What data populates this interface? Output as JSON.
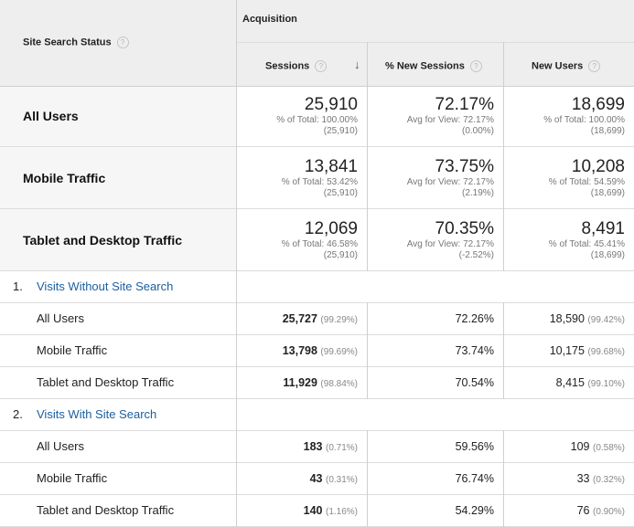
{
  "header": {
    "dimension": "Site Search Status",
    "group": "Acquisition",
    "columns": [
      "Sessions",
      "% New Sessions",
      "New Users"
    ]
  },
  "summary": [
    {
      "label": "All Users",
      "sessions": {
        "value": "25,910",
        "line1": "% of Total: 100.00%",
        "line2": "(25,910)"
      },
      "new_sessions": {
        "value": "72.17%",
        "line1": "Avg for View: 72.17%",
        "line2": "(0.00%)"
      },
      "new_users": {
        "value": "18,699",
        "line1": "% of Total: 100.00%",
        "line2": "(18,699)"
      }
    },
    {
      "label": "Mobile Traffic",
      "sessions": {
        "value": "13,841",
        "line1": "% of Total: 53.42%",
        "line2": "(25,910)"
      },
      "new_sessions": {
        "value": "73.75%",
        "line1": "Avg for View: 72.17%",
        "line2": "(2.19%)"
      },
      "new_users": {
        "value": "10,208",
        "line1": "% of Total: 54.59%",
        "line2": "(18,699)"
      }
    },
    {
      "label": "Tablet and Desktop Traffic",
      "sessions": {
        "value": "12,069",
        "line1": "% of Total: 46.58%",
        "line2": "(25,910)"
      },
      "new_sessions": {
        "value": "70.35%",
        "line1": "Avg for View: 72.17%",
        "line2": "(-2.52%)"
      },
      "new_users": {
        "value": "8,491",
        "line1": "% of Total: 45.41%",
        "line2": "(18,699)"
      }
    }
  ],
  "groups": [
    {
      "num": "1.",
      "name": "Visits Without Site Search",
      "rows": [
        {
          "label": "All Users",
          "sessions": "25,727",
          "sessions_pct": "(99.29%)",
          "new_sessions": "72.26%",
          "new_users": "18,590",
          "new_users_pct": "(99.42%)"
        },
        {
          "label": "Mobile Traffic",
          "sessions": "13,798",
          "sessions_pct": "(99.69%)",
          "new_sessions": "73.74%",
          "new_users": "10,175",
          "new_users_pct": "(99.68%)"
        },
        {
          "label": "Tablet and Desktop Traffic",
          "sessions": "11,929",
          "sessions_pct": "(98.84%)",
          "new_sessions": "70.54%",
          "new_users": "8,415",
          "new_users_pct": "(99.10%)"
        }
      ]
    },
    {
      "num": "2.",
      "name": "Visits With Site Search",
      "rows": [
        {
          "label": "All Users",
          "sessions": "183",
          "sessions_pct": "(0.71%)",
          "new_sessions": "59.56%",
          "new_users": "109",
          "new_users_pct": "(0.58%)"
        },
        {
          "label": "Mobile Traffic",
          "sessions": "43",
          "sessions_pct": "(0.31%)",
          "new_sessions": "76.74%",
          "new_users": "33",
          "new_users_pct": "(0.32%)"
        },
        {
          "label": "Tablet and Desktop Traffic",
          "sessions": "140",
          "sessions_pct": "(1.16%)",
          "new_sessions": "54.29%",
          "new_users": "76",
          "new_users_pct": "(0.90%)"
        }
      ]
    }
  ],
  "icons": {
    "help": "help-icon",
    "sort": "sort-descending-icon"
  }
}
